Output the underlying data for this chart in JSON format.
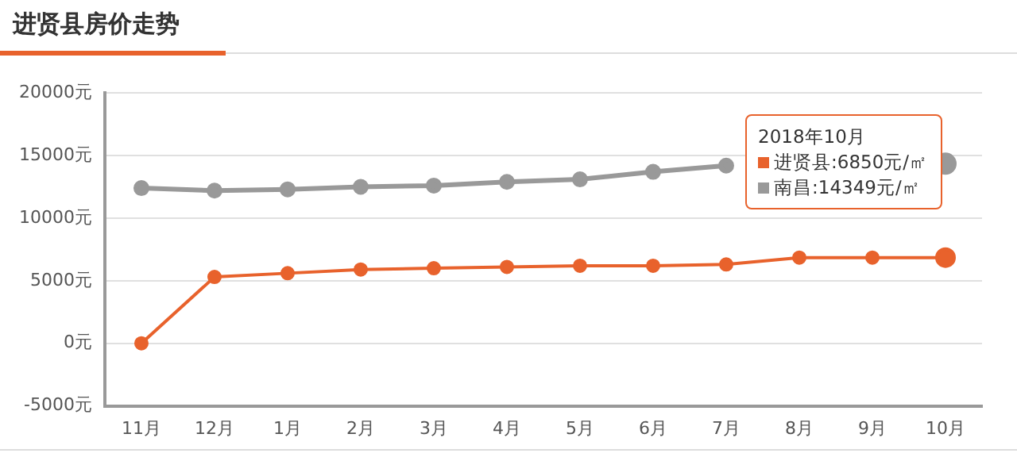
{
  "chart_data": {
    "type": "line",
    "title": "进贤县房价走势",
    "categories": [
      "11月",
      "12月",
      "1月",
      "2月",
      "3月",
      "4月",
      "5月",
      "6月",
      "7月",
      "8月",
      "9月",
      "10月"
    ],
    "series": [
      {
        "name": "进贤县",
        "color": "#e8622c",
        "values": [
          0,
          5300,
          5600,
          5900,
          6000,
          6100,
          6200,
          6200,
          6300,
          6850,
          6850,
          6850
        ]
      },
      {
        "name": "南昌",
        "color": "#999999",
        "values": [
          12400,
          12200,
          12300,
          12500,
          12600,
          12900,
          13100,
          13700,
          14200,
          null,
          null,
          14349
        ]
      }
    ],
    "ylim": [
      -5000,
      20000
    ],
    "yticks": [
      {
        "value": -5000,
        "label": "-5000元"
      },
      {
        "value": 0,
        "label": "0元"
      },
      {
        "value": 5000,
        "label": "5000元"
      },
      {
        "value": 10000,
        "label": "10000元"
      },
      {
        "value": 15000,
        "label": "15000元"
      },
      {
        "value": 20000,
        "label": "20000元"
      }
    ],
    "grid": "y",
    "marker": "circle",
    "line_style": "solid",
    "legend": "top right",
    "annotations": [
      "2018年10月",
      ":6850元/㎡",
      ":14349元/㎡"
    ]
  }
}
